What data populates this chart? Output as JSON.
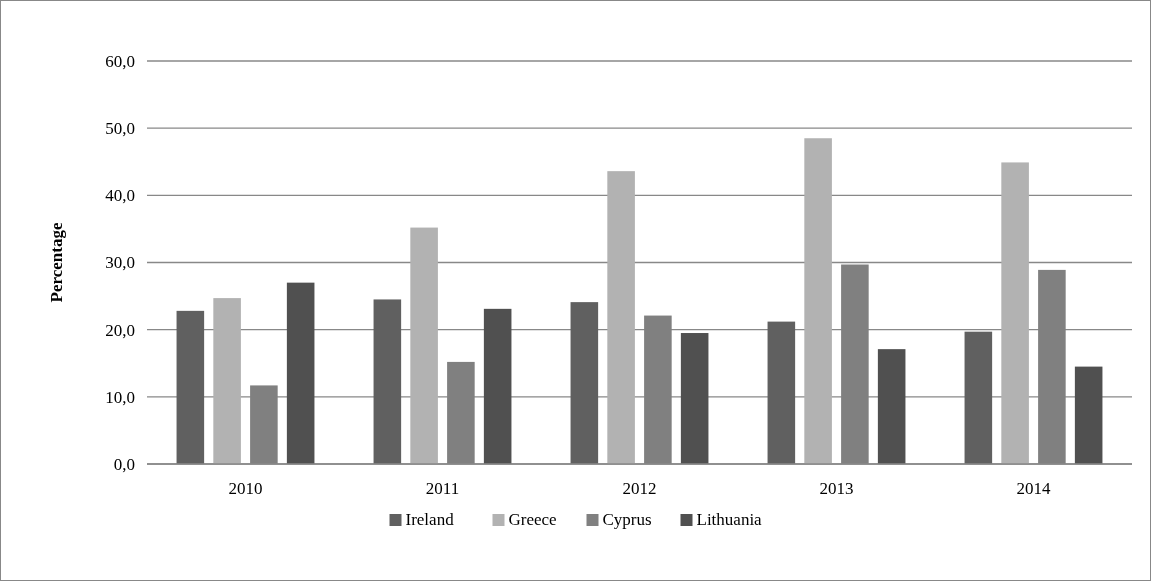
{
  "chart_data": {
    "type": "bar",
    "ylabel": "Percentage",
    "categories": [
      "2010",
      "2011",
      "2012",
      "2013",
      "2014"
    ],
    "series": [
      {
        "name": "Ireland",
        "color": "#606060",
        "values": [
          22.8,
          24.5,
          24.1,
          21.2,
          19.7
        ]
      },
      {
        "name": "Greece",
        "color": "#b2b2b2",
        "values": [
          24.7,
          35.2,
          43.6,
          48.5,
          44.9
        ]
      },
      {
        "name": "Cyprus",
        "color": "#808080",
        "values": [
          11.7,
          15.2,
          22.1,
          29.7,
          28.9
        ]
      },
      {
        "name": "Lithuania",
        "color": "#505050",
        "values": [
          27.0,
          23.1,
          19.5,
          17.1,
          14.5
        ]
      }
    ],
    "ylim": [
      0,
      60
    ],
    "yticks": [
      {
        "value": 0,
        "label": "0,0"
      },
      {
        "value": 10,
        "label": "10,0"
      },
      {
        "value": 20,
        "label": "20,0"
      },
      {
        "value": 30,
        "label": "30,0"
      },
      {
        "value": 40,
        "label": "40,0"
      },
      {
        "value": 50,
        "label": "50,0"
      },
      {
        "value": 60,
        "label": "60,0"
      }
    ],
    "grid": "y",
    "legend": "bottom"
  }
}
